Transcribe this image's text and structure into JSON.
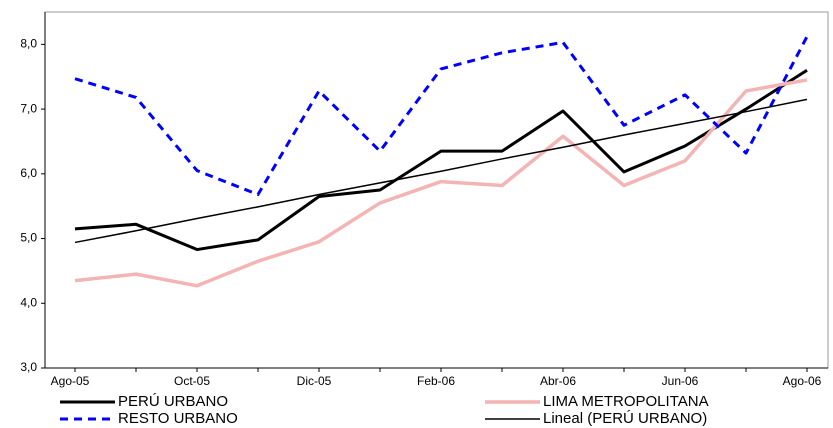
{
  "chart_data": {
    "type": "line",
    "categories": [
      "Ago-05",
      null,
      "Oct-05",
      null,
      "Dic-05",
      null,
      "Feb-06",
      null,
      "Abr-06",
      null,
      "Jun-06",
      null,
      "Ago-06"
    ],
    "series": [
      {
        "name": "PERÚ URBANO",
        "color": "#000000",
        "values": [
          5.15,
          5.22,
          4.83,
          4.98,
          5.65,
          5.75,
          6.35,
          6.35,
          6.97,
          6.03,
          6.43,
          7.0,
          7.6
        ]
      },
      {
        "name": "LIMA METROPOLITANA",
        "color": "#f4b4b4",
        "values": [
          4.35,
          4.45,
          4.27,
          4.65,
          4.95,
          5.55,
          5.88,
          5.82,
          6.58,
          5.82,
          6.2,
          7.28,
          7.45
        ]
      },
      {
        "name": "RESTO URBANO",
        "color": "#0000ff",
        "dashed": true,
        "values": [
          7.47,
          7.18,
          6.05,
          5.68,
          7.28,
          6.35,
          7.62,
          7.87,
          8.03,
          6.75,
          7.22,
          6.32,
          8.12
        ]
      },
      {
        "name": "Lineal (PERÚ URBANO)",
        "color": "#000000",
        "values": [
          4.94,
          5.12,
          5.31,
          5.49,
          5.68,
          5.86,
          6.04,
          6.23,
          6.41,
          6.6,
          6.78,
          6.96,
          7.15
        ]
      }
    ],
    "ylim": [
      3,
      8.5
    ],
    "yticks": [
      {
        "value": 3,
        "label": "3,0"
      },
      {
        "value": 4,
        "label": "4,0"
      },
      {
        "value": 5,
        "label": "5,0"
      },
      {
        "value": 6,
        "label": "6,0"
      },
      {
        "value": 7,
        "label": "7,0"
      },
      {
        "value": 8,
        "label": "8,0"
      }
    ],
    "grid": false,
    "legend": "bottom"
  }
}
